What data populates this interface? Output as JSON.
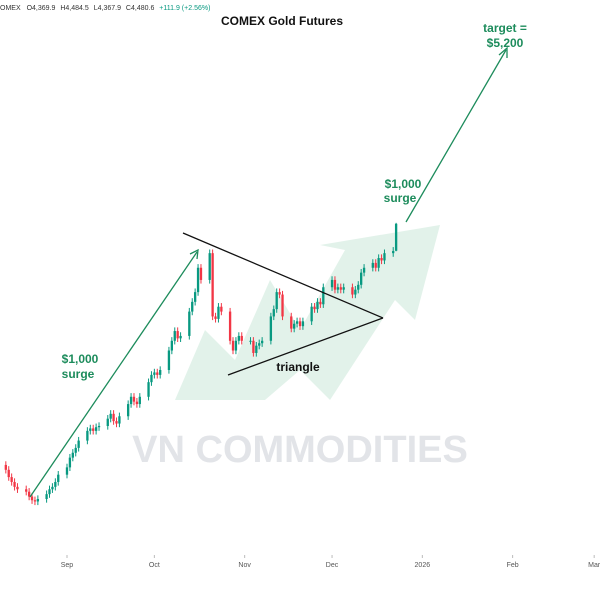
{
  "chart_data": {
    "type": "candlestick",
    "title": "COMEX Gold Futures",
    "header": [
      "OMEX",
      "O4,369.9",
      "H4,484.5",
      "L4,367.9",
      "C4,480.6",
      "+111.9 (+2.56%)"
    ],
    "watermark": "VN COMMODITIES",
    "annotations": [
      {
        "lines": [
          "$1,000",
          "surge"
        ]
      },
      {
        "lines": [
          "triangle"
        ]
      },
      {
        "lines": [
          "$1,000",
          "surge"
        ]
      },
      {
        "lines": [
          "target =",
          "$5,200"
        ]
      }
    ],
    "up_color": "#089981",
    "down_color": "#f23645",
    "xlim": [
      0,
      206
    ],
    "xticks": [
      {
        "value": 23,
        "label": "Sep"
      },
      {
        "value": 53,
        "label": "Oct"
      },
      {
        "value": 84,
        "label": "Nov"
      },
      {
        "value": 114,
        "label": "Dec"
      },
      {
        "value": 145,
        "label": "2026"
      },
      {
        "value": 176,
        "label": "Feb"
      },
      {
        "value": 204,
        "label": "Mar"
      }
    ],
    "ylim": [
      3120,
      5400
    ],
    "x": [
      2,
      3,
      4,
      5,
      6,
      9,
      10,
      11,
      12,
      13,
      16,
      17,
      18,
      19,
      20,
      23,
      24,
      25,
      26,
      27,
      30,
      31,
      32,
      33,
      34,
      37,
      38,
      39,
      40,
      41,
      44,
      45,
      46,
      47,
      48,
      51,
      52,
      53,
      54,
      55,
      58,
      59,
      60,
      61,
      62,
      65,
      66,
      67,
      68,
      69,
      72,
      73,
      74,
      75,
      76,
      79,
      80,
      81,
      82,
      83,
      86,
      87,
      88,
      89,
      90,
      93,
      94,
      95,
      96,
      97,
      100,
      101,
      102,
      103,
      104,
      107,
      108,
      109,
      110,
      111,
      114,
      115,
      116,
      117,
      118,
      121,
      122,
      123,
      124,
      125,
      128,
      129,
      130,
      131,
      132,
      135,
      136
    ],
    "open": [
      3490,
      3470,
      3440,
      3420,
      3400,
      3390,
      3380,
      3360,
      3345,
      3340,
      3350,
      3370,
      3390,
      3400,
      3420,
      3450,
      3480,
      3520,
      3540,
      3560,
      3590,
      3630,
      3640,
      3630,
      3645,
      3650,
      3680,
      3700,
      3670,
      3660,
      3690,
      3740,
      3770,
      3750,
      3740,
      3770,
      3830,
      3860,
      3870,
      3860,
      3880,
      3960,
      4000,
      4040,
      4010,
      4020,
      4120,
      4160,
      4200,
      4300,
      4250,
      4360,
      4100,
      4090,
      4140,
      4120,
      4000,
      3960,
      4000,
      4020,
      4000,
      4000,
      3950,
      3980,
      3990,
      4000,
      4100,
      4130,
      4200,
      4190,
      4100,
      4050,
      4070,
      4080,
      4060,
      4080,
      4140,
      4130,
      4160,
      4150,
      4220,
      4250,
      4210,
      4220,
      4210,
      4220,
      4190,
      4210,
      4230,
      4280,
      4300,
      4320,
      4300,
      4340,
      4330,
      4360,
      4369.9
    ],
    "high": [
      3505,
      3485,
      3455,
      3435,
      3415,
      3405,
      3395,
      3375,
      3360,
      3365,
      3385,
      3405,
      3415,
      3435,
      3465,
      3495,
      3535,
      3555,
      3575,
      3605,
      3645,
      3655,
      3655,
      3660,
      3665,
      3695,
      3715,
      3715,
      3685,
      3705,
      3755,
      3785,
      3785,
      3765,
      3785,
      3845,
      3875,
      3885,
      3885,
      3895,
      3975,
      4015,
      4055,
      4055,
      4035,
      4135,
      4175,
      4215,
      4315,
      4315,
      4375,
      4375,
      4115,
      4155,
      4155,
      4135,
      4015,
      4015,
      4035,
      4035,
      4015,
      4015,
      3995,
      4005,
      4015,
      4115,
      4145,
      4215,
      4215,
      4205,
      4115,
      4085,
      4095,
      4095,
      4095,
      4155,
      4155,
      4175,
      4175,
      4235,
      4265,
      4265,
      4235,
      4235,
      4235,
      4235,
      4225,
      4245,
      4295,
      4315,
      4335,
      4335,
      4355,
      4355,
      4375,
      4385,
      4484.5
    ],
    "low": [
      3455,
      3425,
      3405,
      3385,
      3375,
      3365,
      3345,
      3330,
      3325,
      3325,
      3335,
      3355,
      3375,
      3385,
      3405,
      3435,
      3465,
      3505,
      3525,
      3545,
      3575,
      3615,
      3615,
      3615,
      3630,
      3635,
      3665,
      3655,
      3645,
      3645,
      3675,
      3725,
      3735,
      3725,
      3725,
      3755,
      3815,
      3845,
      3845,
      3845,
      3865,
      3945,
      3985,
      3995,
      3995,
      4005,
      4105,
      4145,
      4185,
      4235,
      4235,
      4085,
      4075,
      4075,
      4105,
      3985,
      3945,
      3945,
      3985,
      3985,
      3985,
      3935,
      3935,
      3965,
      3975,
      3985,
      4085,
      4115,
      4175,
      4085,
      4035,
      4035,
      4055,
      4045,
      4045,
      4065,
      4115,
      4115,
      4135,
      4135,
      4205,
      4195,
      4195,
      4195,
      4195,
      4175,
      4175,
      4195,
      4215,
      4265,
      4285,
      4285,
      4285,
      4315,
      4315,
      4345,
      4367.9
    ],
    "close": [
      3470,
      3440,
      3420,
      3400,
      3390,
      3380,
      3360,
      3345,
      3340,
      3350,
      3370,
      3390,
      3400,
      3420,
      3450,
      3480,
      3520,
      3540,
      3560,
      3590,
      3630,
      3640,
      3630,
      3645,
      3650,
      3680,
      3700,
      3670,
      3660,
      3690,
      3740,
      3770,
      3750,
      3740,
      3770,
      3830,
      3860,
      3870,
      3860,
      3880,
      3960,
      4000,
      4040,
      4010,
      4020,
      4120,
      4160,
      4200,
      4300,
      4250,
      4360,
      4100,
      4090,
      4140,
      4120,
      4000,
      3960,
      4000,
      4020,
      4000,
      4000,
      3950,
      3980,
      3990,
      4000,
      4100,
      4130,
      4200,
      4190,
      4100,
      4050,
      4070,
      4080,
      4060,
      4080,
      4140,
      4130,
      4160,
      4150,
      4220,
      4250,
      4210,
      4220,
      4210,
      4220,
      4190,
      4210,
      4230,
      4280,
      4300,
      4320,
      4300,
      4340,
      4330,
      4360,
      4368.7,
      4480.6
    ]
  }
}
